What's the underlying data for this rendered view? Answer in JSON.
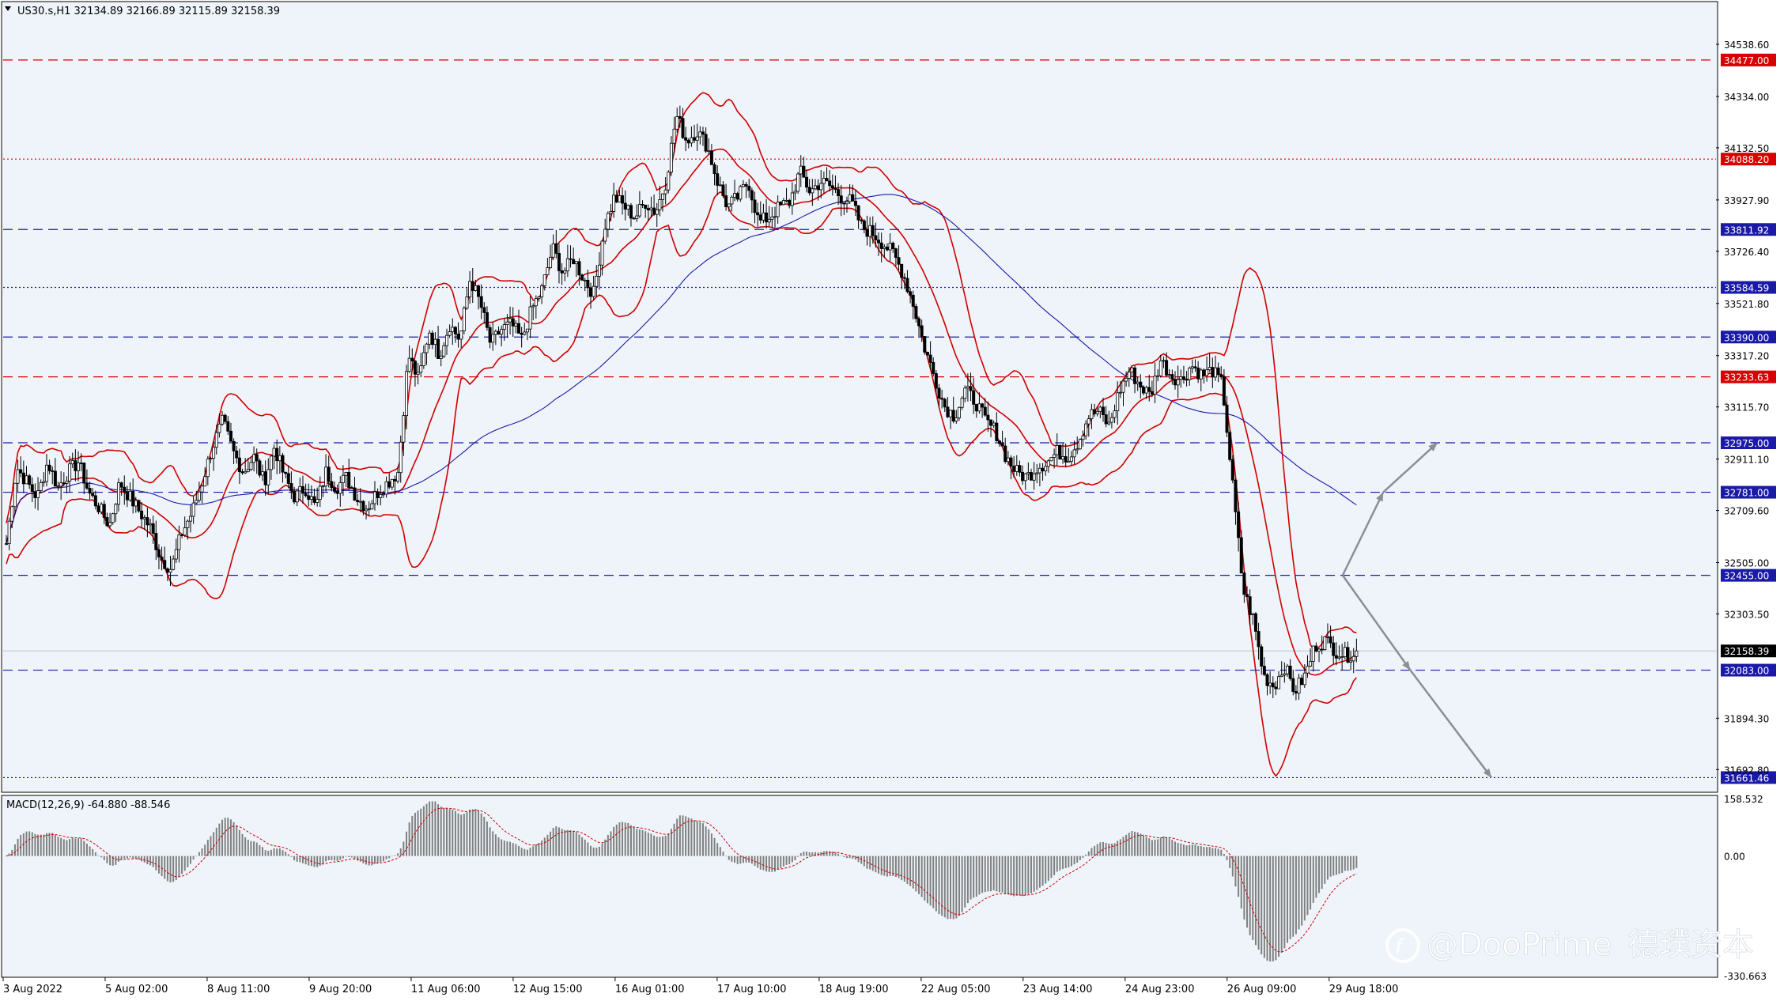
{
  "window": {
    "symbol_title": "US30.s,H1  32134.89 32166.89 32115.89 32158.39",
    "watermark_handle": "@DooPrime",
    "watermark_cn": "德璞资本"
  },
  "macd": {
    "label": "MACD(12,26,9) -64.880 -88.546",
    "scale_labels": [
      "158.532",
      "0.00",
      "-330.663"
    ]
  },
  "chart_data": {
    "type": "candlestick",
    "symbol": "US30.s",
    "timeframe": "H1",
    "ohlc_current": {
      "open": 32134.89,
      "high": 32166.89,
      "low": 32115.89,
      "close": 32158.39
    },
    "ylim": [
      31610,
      34700
    ],
    "price_axis_ticks": [
      "34538.60",
      "34334.00",
      "34132.50",
      "33927.90",
      "33726.40",
      "33521.80",
      "33317.20",
      "33115.70",
      "32911.10",
      "32709.60",
      "32505.00",
      "32303.50",
      "31894.30",
      "31692.80"
    ],
    "time_axis_ticks": [
      "3 Aug 2022",
      "5 Aug 02:00",
      "8 Aug 11:00",
      "9 Aug 20:00",
      "11 Aug 06:00",
      "12 Aug 15:00",
      "16 Aug 01:00",
      "17 Aug 10:00",
      "18 Aug 19:00",
      "22 Aug 05:00",
      "23 Aug 14:00",
      "24 Aug 23:00",
      "26 Aug 09:00",
      "29 Aug 18:00"
    ],
    "horizontal_levels": [
      {
        "price": 34477.0,
        "label": "34477.00",
        "color": "#d80000",
        "style": "dash"
      },
      {
        "price": 34088.2,
        "label": "34088.20",
        "color": "#d80000",
        "style": "dot"
      },
      {
        "price": 33811.92,
        "label": "33811.92",
        "color": "#1a1aa6",
        "style": "dash"
      },
      {
        "price": 33584.59,
        "label": "33584.59",
        "color": "#1a1aa6",
        "style": "dot"
      },
      {
        "price": 33390.0,
        "label": "33390.00",
        "color": "#1a1aa6",
        "style": "dash"
      },
      {
        "price": 33233.63,
        "label": "33233.63",
        "color": "#d80000",
        "style": "dash"
      },
      {
        "price": 32975.0,
        "label": "32975.00",
        "color": "#1a1aa6",
        "style": "dash"
      },
      {
        "price": 32781.0,
        "label": "32781.00",
        "color": "#1a1aa6",
        "style": "dash"
      },
      {
        "price": 32455.0,
        "label": "32455.00",
        "color": "#1a1aa6",
        "style": "dash"
      },
      {
        "price": 32083.0,
        "label": "32083.00",
        "color": "#1a1aa6",
        "style": "dash"
      },
      {
        "price": 31661.46,
        "label": "31661.46",
        "color": "#1a1aa6",
        "style": "dot"
      }
    ],
    "current_price": {
      "price": 32158.39,
      "label": "32158.39"
    },
    "price_path": [
      32580,
      32880,
      32820,
      32760,
      32900,
      32800,
      32860,
      32900,
      32780,
      32720,
      32650,
      32820,
      32760,
      32700,
      32640,
      32520,
      32480,
      32620,
      32700,
      32820,
      32960,
      33060,
      32940,
      32860,
      32920,
      32820,
      32960,
      32840,
      32760,
      32800,
      32720,
      32860,
      32800,
      32840,
      32760,
      32720,
      32780,
      32820,
      32860,
      33320,
      33220,
      33420,
      33320,
      33440,
      33380,
      33620,
      33520,
      33360,
      33420,
      33440,
      33380,
      33500,
      33580,
      33740,
      33640,
      33700,
      33620,
      33560,
      33820,
      33940,
      33900,
      33860,
      33920,
      33880,
      34000,
      34260,
      34160,
      34200,
      34140,
      34000,
      33900,
      33940,
      34000,
      33840,
      33860,
      33900,
      33920,
      34040,
      33960,
      34000,
      33980,
      33940,
      33920,
      33820,
      33800,
      33760,
      33720,
      33640,
      33520,
      33360,
      33240,
      33120,
      33080,
      33180,
      33140,
      33060,
      33020,
      32920,
      32860,
      32840,
      32880,
      32900,
      32940,
      32920,
      32980,
      33080,
      33100,
      33040,
      33180,
      33260,
      33200,
      33160,
      33300,
      33240,
      33220,
      33280,
      33240,
      33260,
      33200,
      32800,
      32400,
      32280,
      32060,
      32020,
      32100,
      32000,
      32060,
      32180,
      32200,
      32160,
      32140,
      32158
    ],
    "bollinger": {
      "period": 20,
      "colors": {
        "bands": "#d00000"
      }
    },
    "moving_average": {
      "color": "#1a1aa6"
    },
    "projection_arrows": [
      {
        "from": {
          "t": 0.99,
          "price": 32455
        },
        "to": {
          "t": 1.02,
          "price": 32781
        }
      },
      {
        "from": {
          "t": 1.02,
          "price": 32781
        },
        "to": {
          "t": 1.06,
          "price": 32975
        }
      },
      {
        "from": {
          "t": 0.99,
          "price": 32455
        },
        "to": {
          "t": 1.04,
          "price": 32083
        }
      },
      {
        "from": {
          "t": 1.04,
          "price": 32083
        },
        "to": {
          "t": 1.1,
          "price": 31661
        }
      }
    ],
    "macd": {
      "fast": 12,
      "slow": 26,
      "signal": 9,
      "value": -64.88,
      "signal_value": -88.546,
      "ylim": [
        -330.663,
        158.532
      ]
    }
  }
}
